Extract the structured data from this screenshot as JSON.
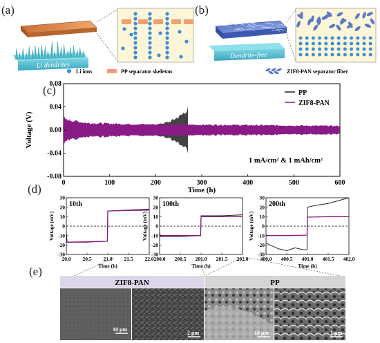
{
  "panel_labels": {
    "a": "(a)",
    "b": "(b)",
    "c": "(c)",
    "d": "(d)",
    "e": "(e)"
  },
  "panel_a": {
    "block_label": "Li dendrites",
    "legend": [
      {
        "label": "Li ions",
        "color": "#3a8fd8",
        "shape": "dot"
      },
      {
        "label": "PP separator skeleton",
        "color": "#f0a070",
        "shape": "rect"
      }
    ]
  },
  "panel_b": {
    "block_label": "Dendrite-free",
    "legend": [
      {
        "label": "ZIF8-PAN separator fiber",
        "color": "#5a78c8",
        "shape": "fiber"
      }
    ]
  },
  "colors": {
    "pp": "#222222",
    "zif": "#8a1a86",
    "inset_bg": "#fdf6d8",
    "li_ion": "#3a8fd8",
    "pp_skeleton": "#f0a070",
    "fiber": "#5a78c8",
    "dendrite": "#48b7c7"
  },
  "chart_data": [
    {
      "type": "line",
      "panel": "(c)",
      "xlabel": "Time (h)",
      "ylabel": "Voltage (V)",
      "xlim": [
        0,
        600
      ],
      "ylim": [
        -0.08,
        0.08
      ],
      "xticks": [
        0,
        100,
        200,
        300,
        400,
        500,
        600
      ],
      "yticks": [
        -0.08,
        -0.04,
        0.0,
        0.04,
        0.08
      ],
      "ytick_labels": [
        "-0.08",
        "-0.04",
        "0.00",
        "0.04",
        "0.08"
      ],
      "annotation": "1 mA/cm² & 1 mAh/cm²",
      "legend_position": "top-right",
      "series": [
        {
          "name": "PP",
          "color": "#222222",
          "amplitude_envelope": [
            [
              0,
              0.015
            ],
            [
              10,
              0.012
            ],
            [
              50,
              0.009
            ],
            [
              150,
              0.008
            ],
            [
              200,
              0.009
            ],
            [
              230,
              0.014
            ],
            [
              255,
              0.025
            ],
            [
              270,
              0.036
            ],
            [
              272,
              0
            ]
          ]
        },
        {
          "name": "ZIF8-PAN",
          "color": "#8a1a86",
          "amplitude_envelope": [
            [
              0,
              0.022
            ],
            [
              5,
              0.018
            ],
            [
              50,
              0.012
            ],
            [
              150,
              0.01
            ],
            [
              300,
              0.009
            ],
            [
              450,
              0.008
            ],
            [
              600,
              0.007
            ]
          ]
        }
      ]
    },
    {
      "type": "line",
      "panel": "(d)-10th",
      "title": "10th",
      "ylabel": "Voltage (mV)",
      "xlabel": "Time (h)",
      "xlim": [
        20.0,
        22.0
      ],
      "ylim": [
        -30,
        30
      ],
      "xticks": [
        "20.0",
        "20.5",
        "21.0",
        "21.5",
        "22.0"
      ],
      "yticks": [
        -30,
        -20,
        -10,
        0,
        10,
        20,
        30
      ],
      "series": [
        {
          "name": "PP",
          "color": "#222222",
          "points": [
            [
              20.0,
              -7
            ],
            [
              20.02,
              -17
            ],
            [
              20.5,
              -17
            ],
            [
              20.99,
              -16
            ],
            [
              21.0,
              16
            ],
            [
              21.5,
              17
            ],
            [
              22.0,
              18
            ]
          ]
        },
        {
          "name": "ZIF8-PAN",
          "color": "#8a1a86",
          "points": [
            [
              20.0,
              -17
            ],
            [
              20.5,
              -16.5
            ],
            [
              20.99,
              -16
            ],
            [
              21.0,
              16
            ],
            [
              21.5,
              16.5
            ],
            [
              22.0,
              17
            ]
          ]
        }
      ]
    },
    {
      "type": "line",
      "panel": "(d)-100th",
      "title": "100th",
      "ylabel": "Voltage (mV)",
      "xlabel": "Time (h)",
      "xlim": [
        200.0,
        202.0
      ],
      "ylim": [
        -30,
        30
      ],
      "xticks": [
        "200.0",
        "200.5",
        "201.0",
        "201.5",
        "202.0"
      ],
      "yticks": [
        -30,
        -20,
        -10,
        0,
        10,
        20,
        30
      ],
      "series": [
        {
          "name": "PP",
          "color": "#222222",
          "points": [
            [
              200.0,
              -6
            ],
            [
              200.02,
              -11
            ],
            [
              200.5,
              -11
            ],
            [
              200.99,
              -10
            ],
            [
              201.0,
              11
            ],
            [
              201.5,
              11
            ],
            [
              202.0,
              12
            ]
          ]
        },
        {
          "name": "ZIF8-PAN",
          "color": "#8a1a86",
          "points": [
            [
              200.0,
              -10
            ],
            [
              200.5,
              -10
            ],
            [
              200.99,
              -10
            ],
            [
              201.0,
              10
            ],
            [
              201.5,
              10
            ],
            [
              202.0,
              10
            ]
          ]
        }
      ]
    },
    {
      "type": "line",
      "panel": "(d)-200th",
      "title": "200th",
      "ylabel": "Voltage (mV)",
      "xlabel": "Time (h)",
      "xlim": [
        400.0,
        402.0
      ],
      "ylim": [
        -30,
        30
      ],
      "xticks": [
        "400.0",
        "400.5",
        "401.0",
        "401.5",
        "402.0"
      ],
      "yticks": [
        -30,
        -20,
        -10,
        0,
        10,
        20,
        30
      ],
      "series": [
        {
          "name": "PP",
          "color": "#222222",
          "points": [
            [
              400.0,
              -18
            ],
            [
              400.1,
              -20
            ],
            [
              400.3,
              -24
            ],
            [
              400.5,
              -26
            ],
            [
              400.7,
              -23
            ],
            [
              400.9,
              -25
            ],
            [
              400.99,
              -25
            ],
            [
              401.0,
              20
            ],
            [
              401.2,
              22
            ],
            [
              401.5,
              24
            ],
            [
              401.75,
              27
            ],
            [
              402.0,
              30
            ]
          ]
        },
        {
          "name": "ZIF8-PAN",
          "color": "#8a1a86",
          "points": [
            [
              400.0,
              -10
            ],
            [
              400.5,
              -10
            ],
            [
              400.99,
              -9.5
            ],
            [
              401.0,
              9.5
            ],
            [
              401.5,
              10
            ],
            [
              402.0,
              10
            ]
          ]
        }
      ]
    }
  ],
  "panel_e": {
    "groups": [
      {
        "label": "ZIF8-PAN"
      },
      {
        "label": "PP"
      }
    ],
    "images": [
      {
        "scale": "10 μm"
      },
      {
        "scale": "2 μm"
      },
      {
        "scale": "10 μm"
      },
      {
        "scale": "1 μm"
      }
    ]
  }
}
